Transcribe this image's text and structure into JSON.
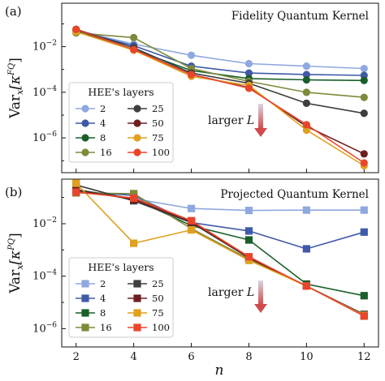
{
  "xlabel": "n",
  "chart_data": [
    {
      "type": "line",
      "panel_label": "(a)",
      "title": "Fidelity Quantum Kernel",
      "ylabel": "Var",
      "ylabel_sub": "x",
      "ylabel_bracket": "[κ",
      "ylabel_sup": "FQ",
      "ylabel_close": "]",
      "yscale": "log",
      "x": [
        2,
        4,
        6,
        8,
        10,
        12
      ],
      "xlim": [
        1.5,
        12.5
      ],
      "ylim": [
        3e-08,
        0.8
      ],
      "yticks": [
        {
          "value": 0.01,
          "base": "10",
          "exp": "−2"
        },
        {
          "value": 0.0001,
          "base": "10",
          "exp": "−4"
        },
        {
          "value": 1e-06,
          "base": "10",
          "exp": "−6"
        }
      ],
      "grid": false,
      "legend_title": "HEE's layers",
      "legend_position": "lower-left",
      "marker": "circle",
      "arrow_text": "larger L",
      "series": [
        {
          "name": "2",
          "color": "#8fa8e0",
          "values": [
            0.052,
            0.013,
            0.0042,
            0.0018,
            0.0014,
            0.0011
          ]
        },
        {
          "name": "4",
          "color": "#3f5aa8",
          "values": [
            0.05,
            0.011,
            0.0014,
            0.0007,
            0.0006,
            0.00055
          ]
        },
        {
          "name": "8",
          "color": "#1a5e2a",
          "values": [
            0.05,
            0.0075,
            0.0009,
            0.0004,
            0.00035,
            0.00033
          ]
        },
        {
          "name": "16",
          "color": "#7e8a3a",
          "values": [
            0.04,
            0.025,
            0.0011,
            0.0003,
            0.0001,
            6e-05
          ]
        },
        {
          "name": "25",
          "color": "#3e3e3e",
          "values": [
            0.058,
            0.009,
            0.0007,
            0.00025,
            3.3e-05,
            1.2e-05
          ]
        },
        {
          "name": "50",
          "color": "#6e1e1e",
          "values": [
            0.056,
            0.0072,
            0.0006,
            0.00016,
            3.2e-06,
            2e-07
          ]
        },
        {
          "name": "75",
          "color": "#e0a020",
          "values": [
            0.045,
            0.007,
            0.0005,
            0.0002,
            2.2e-06,
            6e-08
          ]
        },
        {
          "name": "100",
          "color": "#e8452a",
          "values": [
            0.057,
            0.0075,
            0.0006,
            0.00015,
            3.8e-06,
            8e-08
          ]
        }
      ]
    },
    {
      "type": "line",
      "panel_label": "(b)",
      "title": "Projected Quantum Kernel",
      "ylabel": "Var",
      "ylabel_sub": "x",
      "ylabel_bracket": "[κ",
      "ylabel_sup": "PQ",
      "ylabel_close": "]",
      "yscale": "log",
      "x": [
        2,
        4,
        6,
        8,
        10,
        12
      ],
      "xlim": [
        1.5,
        12.5
      ],
      "ylim": [
        2e-07,
        0.5
      ],
      "yticks": [
        {
          "value": 0.01,
          "base": "10",
          "exp": "−2"
        },
        {
          "value": 0.0001,
          "base": "10",
          "exp": "−4"
        },
        {
          "value": 1e-06,
          "base": "10",
          "exp": "−6"
        }
      ],
      "grid": false,
      "legend_title": "HEE's layers",
      "legend_position": "lower-left",
      "marker": "square",
      "arrow_text": "larger L",
      "series": [
        {
          "name": "2",
          "color": "#8fa8e0",
          "values": [
            0.18,
            0.09,
            0.038,
            0.032,
            0.033,
            0.033
          ]
        },
        {
          "name": "4",
          "color": "#3f5aa8",
          "values": [
            0.17,
            0.12,
            0.011,
            0.0053,
            0.0011,
            0.0048
          ]
        },
        {
          "name": "8",
          "color": "#1a5e2a",
          "values": [
            0.2,
            0.09,
            0.0085,
            0.0024,
            5e-05,
            1.8e-05
          ]
        },
        {
          "name": "16",
          "color": "#7e8a3a",
          "values": [
            0.15,
            0.14,
            0.0065,
            0.00045,
            4.2e-05,
            3.2e-06
          ]
        },
        {
          "name": "25",
          "color": "#3e3e3e",
          "values": [
            0.3,
            0.075,
            0.011,
            0.0005,
            4.2e-05,
            3.5e-06
          ]
        },
        {
          "name": "50",
          "color": "#6e1e1e",
          "values": [
            0.19,
            0.085,
            0.012,
            0.0005,
            4.2e-05,
            3.2e-06
          ]
        },
        {
          "name": "75",
          "color": "#e0a020",
          "values": [
            0.35,
            0.0018,
            0.0058,
            0.0004,
            4.2e-05,
            3.2e-06
          ]
        },
        {
          "name": "100",
          "color": "#e8452a",
          "values": [
            0.16,
            0.095,
            0.013,
            0.00055,
            4.2e-05,
            3e-06
          ]
        }
      ]
    }
  ]
}
